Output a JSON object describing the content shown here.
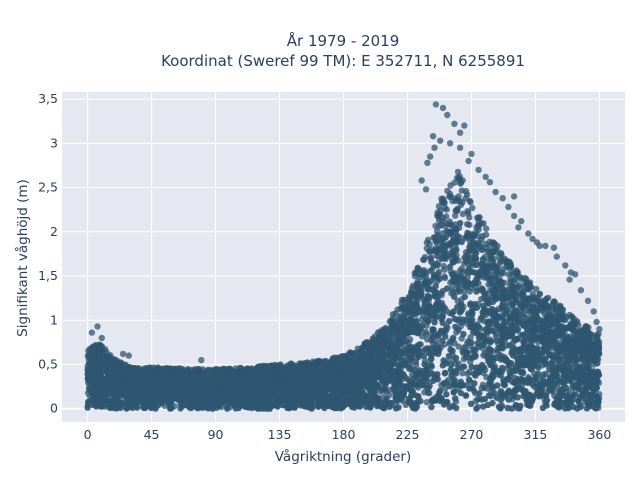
{
  "chart_data": {
    "type": "scatter",
    "title": "År 1979 - 2019",
    "subtitle": "Koordinat (Sweref 99 TM): E 352711, N 6255891",
    "xlabel": "Vågriktning (grader)",
    "ylabel": "Signifikant våghöjd (m)",
    "xlim": [
      -18,
      378
    ],
    "ylim": [
      -0.15,
      3.58
    ],
    "xticks": [
      0,
      45,
      90,
      135,
      180,
      225,
      270,
      315,
      360
    ],
    "xtick_labels": [
      "0",
      "45",
      "90",
      "135",
      "180",
      "225",
      "270",
      "315",
      "360"
    ],
    "yticks": [
      0,
      0.5,
      1,
      1.5,
      2,
      2.5,
      3,
      3.5
    ],
    "ytick_labels": [
      "0",
      "0,5",
      "1",
      "1,5",
      "2",
      "2,5",
      "3",
      "3,5"
    ],
    "grid": true,
    "marker_color": "#2f5670",
    "plot_background": "#e5e8f0",
    "grid_color": "#ffffff",
    "series": [
      {
        "envelope": {
          "x": [
            0,
            5,
            10,
            15,
            20,
            30,
            45,
            60,
            75,
            90,
            105,
            120,
            135,
            150,
            165,
            180,
            190,
            200,
            210,
            220,
            225,
            230,
            235,
            240,
            245,
            250,
            255,
            260,
            265,
            270,
            275,
            280,
            285,
            290,
            300,
            310,
            320,
            330,
            340,
            350,
            355,
            360
          ],
          "y_max": [
            0.65,
            0.75,
            0.72,
            0.62,
            0.55,
            0.48,
            0.47,
            0.46,
            0.45,
            0.45,
            0.46,
            0.48,
            0.5,
            0.52,
            0.55,
            0.6,
            0.68,
            0.8,
            0.95,
            1.2,
            1.35,
            1.55,
            1.75,
            1.95,
            2.2,
            2.45,
            2.6,
            2.7,
            2.55,
            2.35,
            2.2,
            2.1,
            1.95,
            1.8,
            1.6,
            1.45,
            1.3,
            1.2,
            1.05,
            0.95,
            0.88,
            0.85
          ],
          "y_min": [
            0.0,
            0.0,
            0.0,
            0.0,
            0.0,
            0.0,
            0.0,
            0.0,
            0.0,
            0.0,
            0.0,
            0.0,
            0.0,
            0.0,
            0.0,
            0.0,
            0.0,
            0.0,
            0.0,
            0.0,
            0.0,
            0.0,
            0.0,
            0.0,
            0.0,
            0.0,
            0.0,
            0.0,
            0.0,
            0.0,
            0.0,
            0.0,
            0.0,
            0.0,
            0.0,
            0.0,
            0.0,
            0.0,
            0.0,
            0.0,
            0.0,
            0.0
          ]
        },
        "outlier_points": [
          [
            7,
            0.93
          ],
          [
            3,
            0.86
          ],
          [
            10,
            0.8
          ],
          [
            25,
            0.62
          ],
          [
            29,
            0.6
          ],
          [
            80,
            0.55
          ],
          [
            245,
            3.44
          ],
          [
            250,
            3.4
          ],
          [
            253,
            3.32
          ],
          [
            258,
            3.22
          ],
          [
            265,
            3.2
          ],
          [
            262,
            3.12
          ],
          [
            243,
            3.08
          ],
          [
            248,
            3.03
          ],
          [
            255,
            3.0
          ],
          [
            241,
            2.85
          ],
          [
            244,
            2.95
          ],
          [
            239,
            2.78
          ],
          [
            262,
            2.95
          ],
          [
            270,
            2.88
          ],
          [
            268,
            2.8
          ],
          [
            275,
            2.7
          ],
          [
            280,
            2.62
          ],
          [
            283,
            2.56
          ],
          [
            287,
            2.45
          ],
          [
            292,
            2.38
          ],
          [
            296,
            2.28
          ],
          [
            300,
            2.18
          ],
          [
            303,
            2.05
          ],
          [
            313,
            1.92
          ],
          [
            318,
            1.84
          ],
          [
            322,
            1.84
          ],
          [
            328,
            1.82
          ],
          [
            330,
            1.72
          ],
          [
            336,
            1.62
          ],
          [
            340,
            1.54
          ],
          [
            343,
            1.52
          ],
          [
            339,
            1.46
          ],
          [
            347,
            1.34
          ],
          [
            352,
            1.22
          ],
          [
            356,
            1.1
          ],
          [
            358,
            0.98
          ],
          [
            360,
            0.9
          ],
          [
            235,
            2.58
          ],
          [
            238,
            2.48
          ],
          [
            305,
            2.12
          ],
          [
            310,
            1.98
          ],
          [
            316,
            1.88
          ],
          [
            300,
            2.4
          ]
        ]
      }
    ]
  }
}
